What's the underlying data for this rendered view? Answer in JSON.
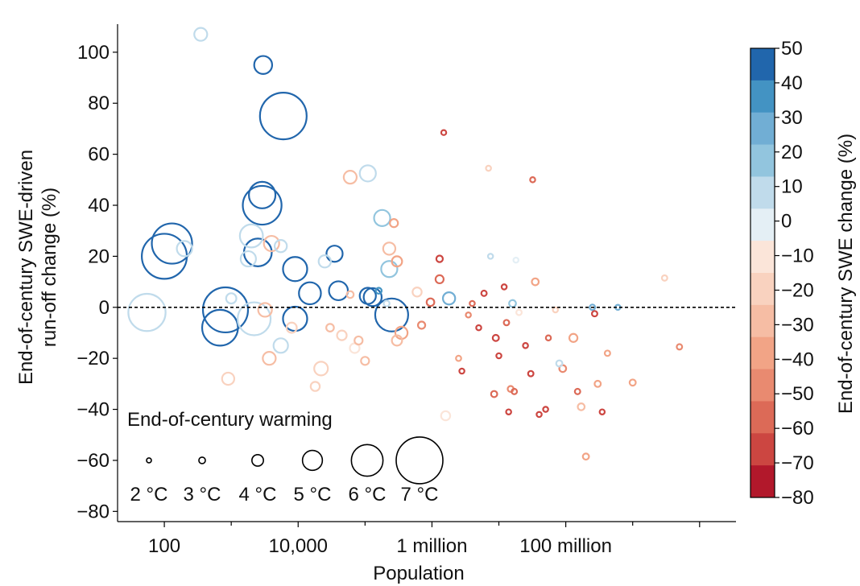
{
  "chart_data": {
    "type": "scatter",
    "xlabel": "Population",
    "ylabel_lines": [
      "End-of-century SWE-driven",
      "run-off change (%)"
    ],
    "x_scale": "log",
    "xlim": [
      20,
      35000000000
    ],
    "ylim": [
      -84,
      111
    ],
    "x_ticks": [
      {
        "value": 100,
        "label": "100"
      },
      {
        "value": 10000,
        "label": "10,000"
      },
      {
        "value": 1000000,
        "label": "1 million"
      },
      {
        "value": 100000000,
        "label": "100 million"
      }
    ],
    "y_ticks": [
      {
        "value": 100,
        "label": "100"
      },
      {
        "value": 80,
        "label": "80"
      },
      {
        "value": 60,
        "label": "60"
      },
      {
        "value": 40,
        "label": "40"
      },
      {
        "value": 20,
        "label": "20"
      },
      {
        "value": 0,
        "label": "0"
      },
      {
        "value": -20,
        "label": "−20"
      },
      {
        "value": -40,
        "label": "−40"
      },
      {
        "value": -60,
        "label": "−60"
      },
      {
        "value": -80,
        "label": "−80"
      }
    ],
    "reference_line": {
      "y": 0,
      "style": "dashed"
    },
    "colorbar": {
      "label": "End-of-century SWE change (%)",
      "range": [
        -80,
        50
      ],
      "tick_labels": [
        "50",
        "40",
        "30",
        "20",
        "10",
        "0",
        "−10",
        "−20",
        "−30",
        "−40",
        "−50",
        "−60",
        "−70",
        "−80"
      ],
      "colors": [
        "#2166ac",
        "#4393c3",
        "#71aed4",
        "#92c5de",
        "#c0dbeb",
        "#e4eff5",
        "#fbe5d9",
        "#f9d2bf",
        "#f6bda4",
        "#f2a486",
        "#e98a70",
        "#dc6a57",
        "#cc4641",
        "#b2182b"
      ]
    },
    "size_legend": {
      "title": "End-of-century warming",
      "entries": [
        {
          "label": "2 °C",
          "warming": 2
        },
        {
          "label": "3 °C",
          "warming": 3
        },
        {
          "label": "4 °C",
          "warming": 4
        },
        {
          "label": "5 °C",
          "warming": 5
        },
        {
          "label": "6 °C",
          "warming": 6
        },
        {
          "label": "7 °C",
          "warming": 7
        }
      ]
    },
    "points": [
      {
        "population": 350,
        "runoff": 107,
        "warming": 4.2,
        "swe_change": 12
      },
      {
        "population": 3000,
        "runoff": 95,
        "warming": 4.8,
        "swe_change": 42
      },
      {
        "population": 6000,
        "runoff": 75,
        "warming": 7,
        "swe_change": 48
      },
      {
        "population": 2900,
        "runoff": 44,
        "warming": 5.6,
        "swe_change": 48
      },
      {
        "population": 2900,
        "runoff": 40,
        "warming": 6.5,
        "swe_change": 48
      },
      {
        "population": 130,
        "runoff": 25,
        "warming": 6.6,
        "swe_change": 42
      },
      {
        "population": 100,
        "runoff": 20,
        "warming": 6.9,
        "swe_change": 42
      },
      {
        "population": 200,
        "runoff": 23,
        "warming": 4.5,
        "swe_change": 12
      },
      {
        "population": 2000,
        "runoff": 28,
        "warming": 5.3,
        "swe_change": 12
      },
      {
        "population": 1800,
        "runoff": 19,
        "warming": 4.5,
        "swe_change": 6
      },
      {
        "population": 2500,
        "runoff": 21.5,
        "warming": 5.7,
        "swe_change": 48
      },
      {
        "population": 4000,
        "runoff": 25,
        "warming": 4.5,
        "swe_change": -25
      },
      {
        "population": 5500,
        "runoff": 24,
        "warming": 4.1,
        "swe_change": 6
      },
      {
        "population": 55,
        "runoff": -2,
        "warming": 6.4,
        "swe_change": 12
      },
      {
        "population": 820,
        "runoff": -1,
        "warming": 6.9,
        "swe_change": 42
      },
      {
        "population": 680,
        "runoff": -8,
        "warming": 6.3,
        "swe_change": 42
      },
      {
        "population": 2200,
        "runoff": -4.5,
        "warming": 6.1,
        "swe_change": 12
      },
      {
        "population": 3200,
        "runoff": -1,
        "warming": 4.3,
        "swe_change": -25
      },
      {
        "population": 9000,
        "runoff": 15,
        "warming": 5.4,
        "swe_change": 48
      },
      {
        "population": 9000,
        "runoff": -4.5,
        "warming": 5.4,
        "swe_change": 48
      },
      {
        "population": 15000,
        "runoff": 5.5,
        "warming": 5.2,
        "swe_change": 48
      },
      {
        "population": 25000,
        "runoff": 18,
        "warming": 4.1,
        "swe_change": 6
      },
      {
        "population": 35000,
        "runoff": 21,
        "warming": 4.6,
        "swe_change": 48
      },
      {
        "population": 40000,
        "runoff": 6.5,
        "warming": 4.9,
        "swe_change": 48
      },
      {
        "population": 60000,
        "runoff": 51,
        "warming": 4.2,
        "swe_change": -30
      },
      {
        "population": 110000,
        "runoff": 52.5,
        "warming": 4.6,
        "swe_change": 6
      },
      {
        "population": 180000,
        "runoff": 35,
        "warming": 4.6,
        "swe_change": 22
      },
      {
        "population": 230000,
        "runoff": 15,
        "warming": 4.6,
        "swe_change": 22
      },
      {
        "population": 270000,
        "runoff": 33,
        "warming": 3.4,
        "swe_change": -35
      },
      {
        "population": 230000,
        "runoff": 23,
        "warming": 4.1,
        "swe_change": -25
      },
      {
        "population": 300000,
        "runoff": 18,
        "warming": 3.8,
        "swe_change": -40
      },
      {
        "population": 110000,
        "runoff": 4.5,
        "warming": 4.6,
        "swe_change": 45
      },
      {
        "population": 130000,
        "runoff": 4,
        "warming": 4.8,
        "swe_change": 45
      },
      {
        "population": 250000,
        "runoff": -3,
        "warming": 6.1,
        "swe_change": 48
      },
      {
        "population": 160000,
        "runoff": 6.5,
        "warming": 2.8,
        "swe_change": 32
      },
      {
        "population": 210000,
        "runoff": 1.5,
        "warming": 2.8,
        "swe_change": 12
      },
      {
        "population": 300000,
        "runoff": -13,
        "warming": 3.8,
        "swe_change": -25
      },
      {
        "population": 350000,
        "runoff": -10,
        "warming": 4.1,
        "swe_change": -35
      },
      {
        "population": 1000,
        "runoff": 3.5,
        "warming": 3.8,
        "swe_change": 6
      },
      {
        "population": 3700,
        "runoff": -20,
        "warming": 4.2,
        "swe_change": -25
      },
      {
        "population": 5500,
        "runoff": -15,
        "warming": 4.4,
        "swe_change": 6
      },
      {
        "population": 8000,
        "runoff": -8,
        "warming": 3.8,
        "swe_change": -20
      },
      {
        "population": 18000,
        "runoff": -31,
        "warming": 3.6,
        "swe_change": -20
      },
      {
        "population": 22000,
        "runoff": -24,
        "warming": 4.3,
        "swe_change": -15
      },
      {
        "population": 900,
        "runoff": -28,
        "warming": 4.1,
        "swe_change": -15
      },
      {
        "population": 30000,
        "runoff": -8,
        "warming": 3.3,
        "swe_change": -30
      },
      {
        "population": 45000,
        "runoff": -11,
        "warming": 3.7,
        "swe_change": -20
      },
      {
        "population": 80000,
        "runoff": -13,
        "warming": 3.4,
        "swe_change": -30
      },
      {
        "population": 100000,
        "runoff": -21,
        "warming": 3.4,
        "swe_change": -30
      },
      {
        "population": 70000,
        "runoff": -16,
        "warming": 3.7,
        "swe_change": -10
      },
      {
        "population": 60000,
        "runoff": 5,
        "warming": 3.1,
        "swe_change": -30
      },
      {
        "population": 600000,
        "runoff": 6,
        "warming": 3.6,
        "swe_change": -15
      },
      {
        "population": 700000,
        "runoff": -7,
        "warming": 3.2,
        "swe_change": -45
      },
      {
        "population": 1300000,
        "runoff": 11,
        "warming": 3.4,
        "swe_change": -55
      },
      {
        "population": 1300000,
        "runoff": 19,
        "warming": 3,
        "swe_change": -65
      },
      {
        "population": 950000,
        "runoff": 2,
        "warming": 3.3,
        "swe_change": -60
      },
      {
        "population": 1800000,
        "runoff": 3.5,
        "warming": 4.1,
        "swe_change": 25
      },
      {
        "population": 1500000,
        "runoff": 68.5,
        "warming": 2.3,
        "swe_change": -70
      },
      {
        "population": 1600000,
        "runoff": -42.5,
        "warming": 3.6,
        "swe_change": -10
      },
      {
        "population": 2500000,
        "runoff": -20,
        "warming": 2.5,
        "swe_change": -40
      },
      {
        "population": 2800000,
        "runoff": -25,
        "warming": 2.4,
        "swe_change": -70
      },
      {
        "population": 3500000,
        "runoff": -3,
        "warming": 2.4,
        "swe_change": -45
      },
      {
        "population": 4000000,
        "runoff": 1.5,
        "warming": 2.4,
        "swe_change": -60
      },
      {
        "population": 5000000,
        "runoff": -8,
        "warming": 2.4,
        "swe_change": -65
      },
      {
        "population": 6000000,
        "runoff": 5.5,
        "warming": 2.6,
        "swe_change": -70
      },
      {
        "population": 7000000,
        "runoff": 54.5,
        "warming": 2.4,
        "swe_change": -20
      },
      {
        "population": 7500000,
        "runoff": 20,
        "warming": 2.4,
        "swe_change": 8
      },
      {
        "population": 8500000,
        "runoff": -34,
        "warming": 2.9,
        "swe_change": -60
      },
      {
        "population": 9000000,
        "runoff": -12,
        "warming": 2.9,
        "swe_change": -65
      },
      {
        "population": 10000000,
        "runoff": -19,
        "warming": 2.4,
        "swe_change": -70
      },
      {
        "population": 12000000,
        "runoff": 8,
        "warming": 2.4,
        "swe_change": -70
      },
      {
        "population": 13000000,
        "runoff": -6,
        "warming": 2.6,
        "swe_change": -60
      },
      {
        "population": 14000000,
        "runoff": -41,
        "warming": 2.4,
        "swe_change": -70
      },
      {
        "population": 15000000,
        "runoff": -32,
        "warming": 2.8,
        "swe_change": -50
      },
      {
        "population": 16000000,
        "runoff": 1.5,
        "warming": 3.1,
        "swe_change": 20
      },
      {
        "population": 17000000,
        "runoff": -33,
        "warming": 2.6,
        "swe_change": -60
      },
      {
        "population": 18000000,
        "runoff": 18.5,
        "warming": 2.4,
        "swe_change": -5
      },
      {
        "population": 20000000,
        "runoff": -2,
        "warming": 2.6,
        "swe_change": -10
      },
      {
        "population": 25000000,
        "runoff": -15,
        "warming": 2.4,
        "swe_change": -65
      },
      {
        "population": 30000000,
        "runoff": -26,
        "warming": 2.6,
        "swe_change": -65
      },
      {
        "population": 32000000,
        "runoff": 50,
        "warming": 2.4,
        "swe_change": -55
      },
      {
        "population": 35000000,
        "runoff": 10,
        "warming": 3.1,
        "swe_change": -40
      },
      {
        "population": 40000000,
        "runoff": -42,
        "warming": 2.4,
        "swe_change": -70
      },
      {
        "population": 50000000,
        "runoff": -40,
        "warming": 2.4,
        "swe_change": -65
      },
      {
        "population": 55000000,
        "runoff": -12,
        "warming": 2.4,
        "swe_change": -55
      },
      {
        "population": 70000000,
        "runoff": -1,
        "warming": 2.4,
        "swe_change": -15
      },
      {
        "population": 80000000,
        "runoff": -22,
        "warming": 2.9,
        "swe_change": 10
      },
      {
        "population": 90000000,
        "runoff": -24,
        "warming": 3.1,
        "swe_change": -45
      },
      {
        "population": 130000000,
        "runoff": -12,
        "warming": 3.4,
        "swe_change": -40
      },
      {
        "population": 150000000,
        "runoff": -33,
        "warming": 2.6,
        "swe_change": -55
      },
      {
        "population": 170000000,
        "runoff": -39,
        "warming": 3.1,
        "swe_change": -30
      },
      {
        "population": 200000000,
        "runoff": -58.5,
        "warming": 2.9,
        "swe_change": -40
      },
      {
        "population": 250000000,
        "runoff": 0,
        "warming": 2.6,
        "swe_change": 25
      },
      {
        "population": 270000000,
        "runoff": -2.5,
        "warming": 2.6,
        "swe_change": -70
      },
      {
        "population": 300000000,
        "runoff": -30,
        "warming": 2.9,
        "swe_change": -40
      },
      {
        "population": 350000000,
        "runoff": -41,
        "warming": 2.4,
        "swe_change": -70
      },
      {
        "population": 420000000,
        "runoff": -18,
        "warming": 2.6,
        "swe_change": -35
      },
      {
        "population": 600000000,
        "runoff": 0,
        "warming": 2.4,
        "swe_change": 30
      },
      {
        "population": 1000000000,
        "runoff": -29.5,
        "warming": 2.9,
        "swe_change": -35
      },
      {
        "population": 3000000000,
        "runoff": 11.5,
        "warming": 2.6,
        "swe_change": -15
      },
      {
        "population": 5000000000,
        "runoff": -15.5,
        "warming": 2.6,
        "swe_change": -45
      }
    ]
  }
}
